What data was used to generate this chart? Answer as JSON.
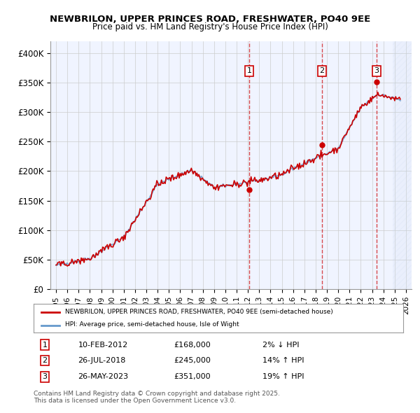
{
  "title": "NEWBRILON, UPPER PRINCES ROAD, FRESHWATER, PO40 9EE",
  "subtitle": "Price paid vs. HM Land Registry's House Price Index (HPI)",
  "ylabel": "",
  "xlabel": "",
  "ylim": [
    0,
    420000
  ],
  "yticks": [
    0,
    50000,
    100000,
    150000,
    200000,
    250000,
    300000,
    350000,
    400000
  ],
  "ytick_labels": [
    "£0",
    "£50K",
    "£100K",
    "£150K",
    "£200K",
    "£250K",
    "£300K",
    "£350K",
    "£400K"
  ],
  "xlim_start": 1994.5,
  "xlim_end": 2026.5,
  "hpi_color": "#6699cc",
  "price_color": "#cc0000",
  "transaction_dates": [
    2012.11,
    2018.57,
    2023.4
  ],
  "transaction_labels": [
    "1",
    "2",
    "3"
  ],
  "transaction_prices": [
    168000,
    245000,
    351000
  ],
  "legend_property": "NEWBRILON, UPPER PRINCES ROAD, FRESHWATER, PO40 9EE (semi-detached house)",
  "legend_hpi": "HPI: Average price, semi-detached house, Isle of Wight",
  "table_data": [
    [
      "1",
      "10-FEB-2012",
      "£168,000",
      "2% ↓ HPI"
    ],
    [
      "2",
      "26-JUL-2018",
      "£245,000",
      "14% ↑ HPI"
    ],
    [
      "3",
      "26-MAY-2023",
      "£351,000",
      "19% ↑ HPI"
    ]
  ],
  "footer": "Contains HM Land Registry data © Crown copyright and database right 2025.\nThis data is licensed under the Open Government Licence v3.0.",
  "background_color": "#ffffff",
  "plot_bg_color": "#f0f4ff",
  "future_hatch_color": "#c8d8f0",
  "grid_color": "#cccccc"
}
